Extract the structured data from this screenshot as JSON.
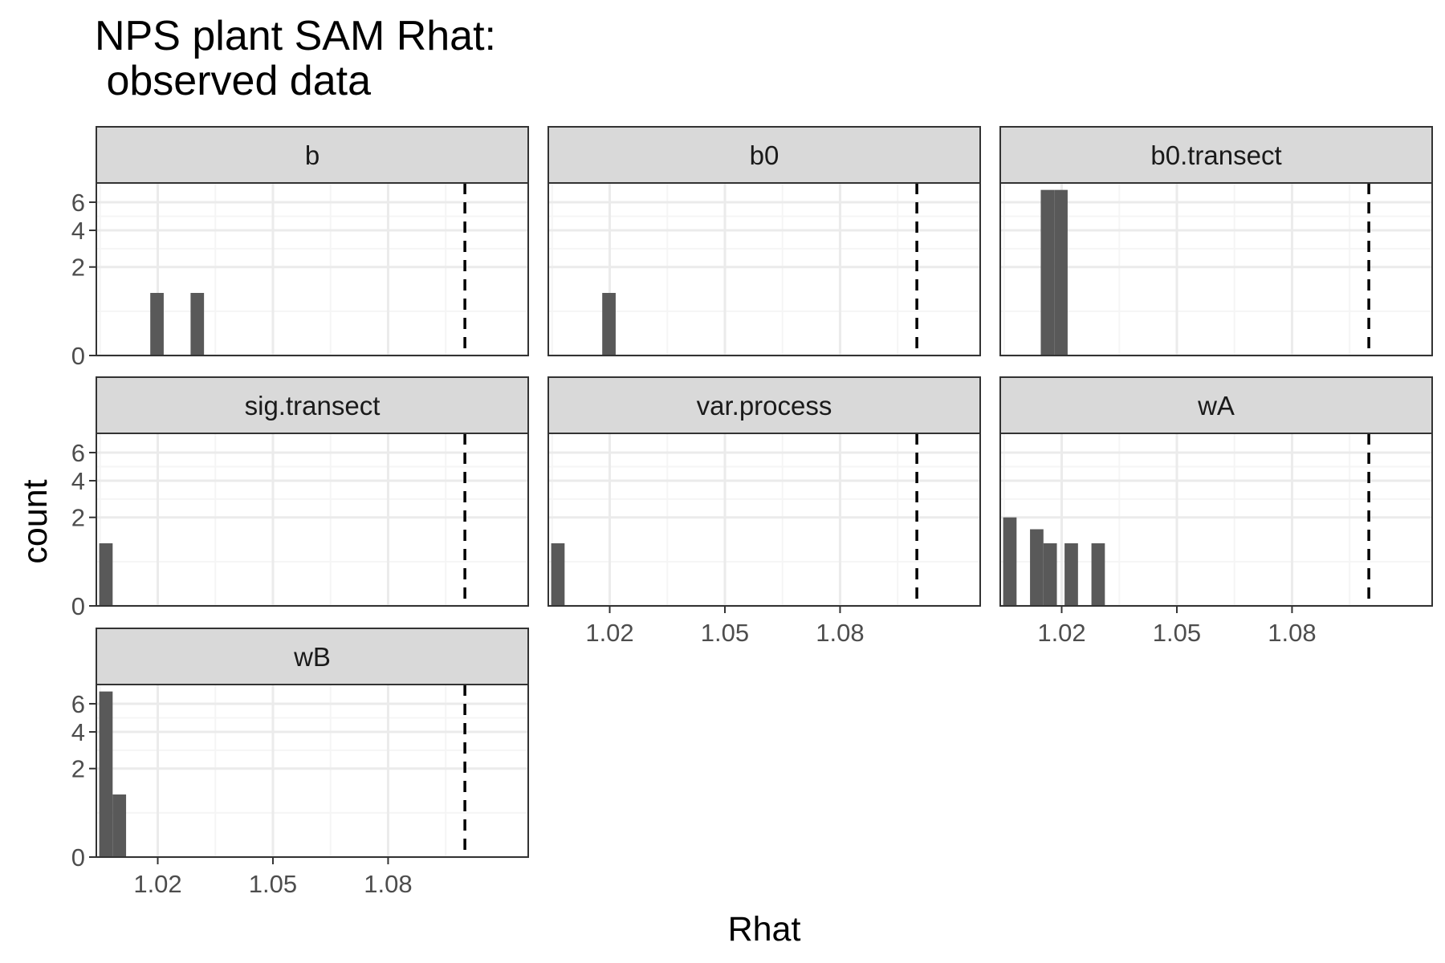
{
  "colors": {
    "bar": "#595959",
    "strip_fill": "#d9d9d9",
    "panel_border": "#333333",
    "grid_major": "#ebebeb",
    "grid_minor": "#f5f5f5",
    "reference_line": "#000000",
    "tick_label": "#4d4d4d"
  },
  "chart_data": {
    "type": "bar",
    "chart_kind": "faceted histogram",
    "title_lines": [
      "NPS plant SAM Rhat:",
      " observed data"
    ],
    "xlabel": "Rhat",
    "ylabel": "count",
    "x_ticks": [
      1.02,
      1.05,
      1.08
    ],
    "x_tick_labels": [
      "1.02",
      "1.05",
      "1.08"
    ],
    "xlim": [
      1.004,
      1.1165
    ],
    "y_scale": "sqrt",
    "y_ticks": [
      0,
      2,
      4,
      6
    ],
    "y_tick_labels": [
      "0",
      "2",
      "4",
      "6"
    ],
    "ylim": [
      0,
      7.6
    ],
    "reference_line_x": 1.1,
    "bin_width": 0.0035,
    "grid": true,
    "facet_layout": "3 columns",
    "facets": [
      {
        "name": "b",
        "bins": [
          {
            "x": 1.0198,
            "count": 1
          },
          {
            "x": 1.0303,
            "count": 1
          }
        ]
      },
      {
        "name": "b0",
        "bins": [
          {
            "x": 1.0198,
            "count": 1
          }
        ]
      },
      {
        "name": "b0.transect",
        "bins": [
          {
            "x": 1.0163,
            "count": 7
          },
          {
            "x": 1.0198,
            "count": 7
          }
        ]
      },
      {
        "name": "sig.transect",
        "bins": [
          {
            "x": 1.0065,
            "count": 1
          }
        ]
      },
      {
        "name": "var.process",
        "bins": [
          {
            "x": 1.0065,
            "count": 1
          }
        ]
      },
      {
        "name": "wA",
        "bins": [
          {
            "x": 1.0065,
            "count": 2
          },
          {
            "x": 1.0135,
            "count": 1.5
          },
          {
            "x": 1.017,
            "count": 1
          },
          {
            "x": 1.0225,
            "count": 1
          },
          {
            "x": 1.0295,
            "count": 1
          }
        ]
      },
      {
        "name": "wB",
        "bins": [
          {
            "x": 1.0065,
            "count": 7
          },
          {
            "x": 1.01,
            "count": 1
          }
        ]
      }
    ]
  }
}
